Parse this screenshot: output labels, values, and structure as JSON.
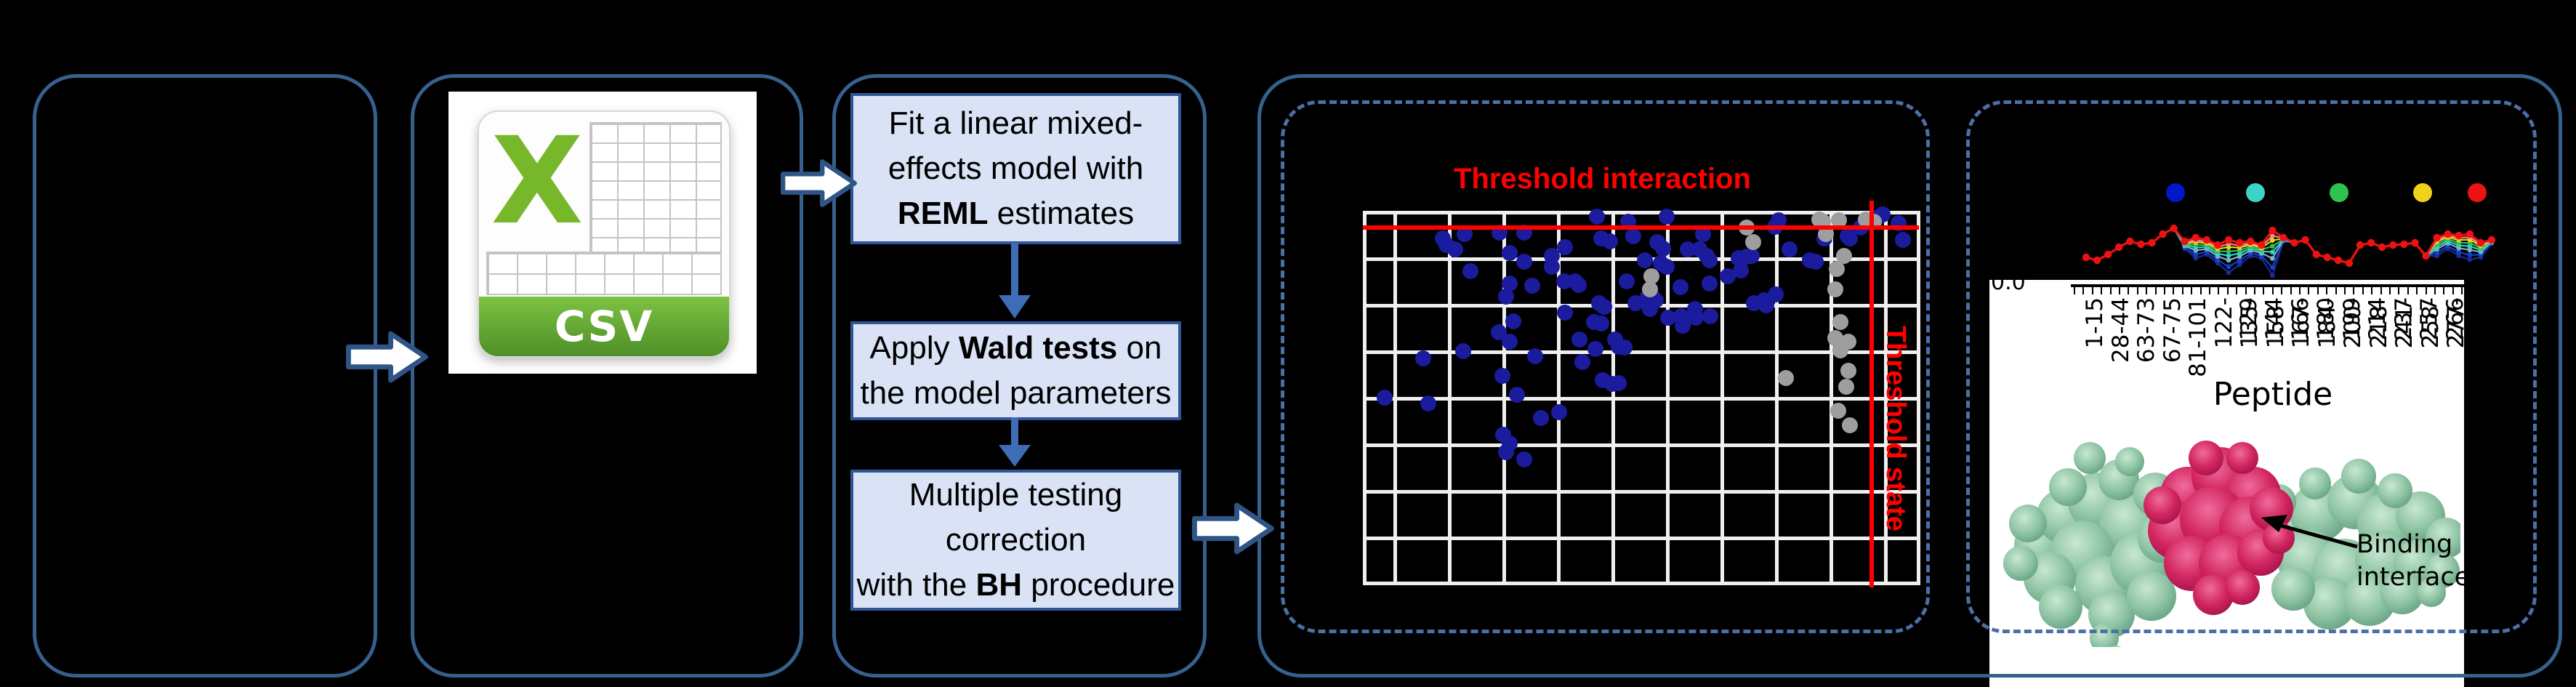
{
  "colors": {
    "background": "#000000",
    "solid_border": "#36618E",
    "dashed_border": "#4A70A6",
    "flow_box_fill": "#D9E3F5",
    "flow_box_border": "#2F5597",
    "connector_blue": "#3E6CB5",
    "threshold_red": "#FF0000",
    "dot_blue": "#1B1B9E",
    "dot_gray": "#9E9E9E",
    "csv_green": "#76B82A"
  },
  "csv_icon": {
    "letter": "X",
    "label": "CSV"
  },
  "flowchart": {
    "boxes": [
      {
        "name": "fit-model-step",
        "lines": [
          [
            {
              "t": "Fit a linear mixed-"
            }
          ],
          [
            {
              "t": "effects model with"
            }
          ],
          [
            {
              "t": "REML",
              "b": true
            },
            {
              "t": " estimates"
            }
          ]
        ]
      },
      {
        "name": "wald-test-step",
        "lines": [
          [
            {
              "t": "Apply "
            },
            {
              "t": "Wald tests",
              "b": true
            },
            {
              "t": " on"
            }
          ],
          [
            {
              "t": "the model parameters"
            }
          ]
        ]
      },
      {
        "name": "multiple-testing-step",
        "lines": [
          [
            {
              "t": "Multiple testing"
            }
          ],
          [
            {
              "t": "correction"
            }
          ],
          [
            {
              "t": "with the "
            },
            {
              "t": "BH",
              "b": true
            },
            {
              "t": " procedure"
            }
          ]
        ]
      }
    ]
  },
  "scatter": {
    "type": "scatter",
    "title": "Threshold interaction",
    "vline_label": "Threshold state",
    "grid": {
      "v": [
        0,
        42,
        117,
        192,
        267,
        342,
        417,
        492,
        567,
        642,
        717,
        762
      ],
      "h": [
        0,
        64,
        128,
        192,
        256,
        320,
        384,
        448,
        510
      ]
    },
    "points": [
      [
        1905,
        547,
        0
      ],
      [
        1958,
        493,
        0
      ],
      [
        1965,
        555,
        0
      ],
      [
        1985,
        328,
        0
      ],
      [
        1990,
        337,
        0
      ],
      [
        2002,
        343,
        0
      ],
      [
        2013,
        483,
        0
      ],
      [
        2015,
        322,
        0
      ],
      [
        2023,
        373,
        0
      ],
      [
        2062,
        457,
        0
      ],
      [
        2063,
        320,
        0
      ],
      [
        2067,
        517,
        0
      ],
      [
        2068,
        598,
        0
      ],
      [
        2072,
        408,
        0
      ],
      [
        2072,
        622,
        0
      ],
      [
        2077,
        348,
        0
      ],
      [
        2077,
        390,
        0
      ],
      [
        2077,
        470,
        0
      ],
      [
        2077,
        610,
        0
      ],
      [
        2082,
        442,
        0
      ],
      [
        2087,
        543,
        0
      ],
      [
        2097,
        320,
        0
      ],
      [
        2097,
        360,
        0
      ],
      [
        2097,
        632,
        0
      ],
      [
        2108,
        393,
        0
      ],
      [
        2112,
        490,
        0
      ],
      [
        2120,
        575,
        0
      ],
      [
        2135,
        352,
        0
      ],
      [
        2135,
        367,
        0
      ],
      [
        2145,
        567,
        0
      ],
      [
        2152,
        387,
        0
      ],
      [
        2153,
        340,
        0
      ],
      [
        2153,
        430,
        0
      ],
      [
        2167,
        387,
        0
      ],
      [
        2172,
        392,
        0
      ],
      [
        2173,
        467,
        0
      ],
      [
        2177,
        498,
        0
      ],
      [
        2193,
        443,
        0
      ],
      [
        2195,
        480,
        0
      ],
      [
        2197,
        298,
        0
      ],
      [
        2200,
        417,
        0
      ],
      [
        2203,
        328,
        0
      ],
      [
        2203,
        445,
        0
      ],
      [
        2205,
        523,
        0
      ],
      [
        2207,
        422,
        0
      ],
      [
        2215,
        332,
        0
      ],
      [
        2218,
        528,
        0
      ],
      [
        2222,
        467,
        0
      ],
      [
        2227,
        477,
        0
      ],
      [
        2227,
        527,
        0
      ],
      [
        2235,
        478,
        0
      ],
      [
        2238,
        387,
        0
      ],
      [
        2240,
        305,
        0
      ],
      [
        2247,
        325,
        0
      ],
      [
        2250,
        417,
        0
      ],
      [
        2263,
        358,
        0
      ],
      [
        2267,
        408,
        0
      ],
      [
        2270,
        425,
        0
      ],
      [
        2275,
        410,
        0
      ],
      [
        2278,
        413,
        0
      ],
      [
        2280,
        333,
        0
      ],
      [
        2285,
        362,
        0
      ],
      [
        2288,
        342,
        0
      ],
      [
        2293,
        298,
        0
      ],
      [
        2293,
        367,
        0
      ],
      [
        2295,
        437,
        0
      ],
      [
        2312,
        395,
        0
      ],
      [
        2313,
        435,
        0
      ],
      [
        2315,
        448,
        0
      ],
      [
        2322,
        343,
        0
      ],
      [
        2332,
        425,
        0
      ],
      [
        2333,
        437,
        0
      ],
      [
        2338,
        343,
        0
      ],
      [
        2343,
        322,
        0
      ],
      [
        2348,
        352,
        0
      ],
      [
        2352,
        358,
        0
      ],
      [
        2352,
        390,
        0
      ],
      [
        2353,
        435,
        0
      ],
      [
        2377,
        380,
        0
      ],
      [
        2392,
        355,
        0
      ],
      [
        2395,
        372,
        0
      ],
      [
        2403,
        353,
        0
      ],
      [
        2410,
        352,
        0
      ],
      [
        2413,
        417,
        0
      ],
      [
        2427,
        413,
        0
      ],
      [
        2430,
        420,
        0
      ],
      [
        2442,
        312,
        0
      ],
      [
        2443,
        405,
        0
      ],
      [
        2447,
        303,
        0
      ],
      [
        2462,
        343,
        0
      ],
      [
        2490,
        358,
        0
      ],
      [
        2498,
        360,
        0
      ],
      [
        2510,
        328,
        0
      ],
      [
        2542,
        325,
        0
      ],
      [
        2545,
        328,
        0
      ],
      [
        2560,
        313,
        0
      ],
      [
        2585,
        298,
        0
      ],
      [
        2590,
        295,
        0
      ],
      [
        2612,
        307,
        0
      ],
      [
        2618,
        330,
        0
      ],
      [
        2272,
        380,
        1
      ],
      [
        2270,
        398,
        1
      ],
      [
        2403,
        313,
        1
      ],
      [
        2412,
        333,
        1
      ],
      [
        2457,
        520,
        1
      ],
      [
        2503,
        302,
        1
      ],
      [
        2508,
        305,
        1
      ],
      [
        2512,
        322,
        1
      ],
      [
        2530,
        303,
        1
      ],
      [
        2537,
        352,
        1
      ],
      [
        2527,
        370,
        1
      ],
      [
        2525,
        398,
        1
      ],
      [
        2532,
        443,
        1
      ],
      [
        2525,
        465,
        1
      ],
      [
        2543,
        470,
        1
      ],
      [
        2532,
        482,
        1
      ],
      [
        2543,
        510,
        1
      ],
      [
        2540,
        532,
        1
      ],
      [
        2529,
        565,
        1
      ],
      [
        2567,
        302,
        1
      ],
      [
        2578,
        305,
        1
      ],
      [
        2545,
        585,
        1
      ]
    ]
  },
  "peptide_chart": {
    "type": "line",
    "y_tick": "0.0",
    "xlabel": "Peptide",
    "x_labels": [
      "1-15",
      "28-44",
      "63-73",
      "67-75",
      "81-101",
      "122-129",
      "135-144",
      "158-166",
      "167-180",
      "184-199",
      "200-214",
      "218-237",
      "241-257",
      "258-266",
      "277-284"
    ],
    "legend_colors": [
      "#0018C8",
      "#3FD2C7",
      "#2FC24E",
      "#F2D219",
      "#EE1111"
    ],
    "base": [
      62,
      66,
      58,
      48,
      40,
      44,
      42,
      30,
      22,
      40,
      35,
      38,
      45,
      38,
      42,
      40,
      45,
      25,
      35,
      42,
      38,
      58,
      62,
      66,
      70,
      45,
      42,
      48,
      45,
      44,
      42,
      60,
      35,
      30,
      32,
      30,
      42,
      38
    ],
    "extra": [
      0,
      0,
      0,
      0,
      0,
      0,
      0,
      0,
      0,
      10,
      28,
      20,
      25,
      45,
      30,
      20,
      18,
      62,
      5,
      0,
      0,
      0,
      0,
      0,
      0,
      0,
      0,
      0,
      0,
      0,
      0,
      0,
      25,
      20,
      28,
      35,
      20,
      5
    ],
    "series": [
      {
        "name": "condition-navy",
        "color": "#1A2A99",
        "f": 1.0
      },
      {
        "name": "condition-blue",
        "color": "#1440CC",
        "f": 0.82
      },
      {
        "name": "condition-steel",
        "color": "#7FB2C0",
        "f": 0.62
      },
      {
        "name": "condition-cyan",
        "color": "#35D1C8",
        "f": 0.48
      },
      {
        "name": "condition-green",
        "color": "#2FC24E",
        "f": 0.35
      },
      {
        "name": "condition-yellow",
        "color": "#F2D219",
        "f": 0.22
      },
      {
        "name": "condition-salmon",
        "color": "#F28E8E",
        "f": 0.12
      },
      {
        "name": "condition-red",
        "color": "#EE1111",
        "f": 0.0
      }
    ]
  },
  "protein": {
    "annotation": "Binding interface"
  }
}
